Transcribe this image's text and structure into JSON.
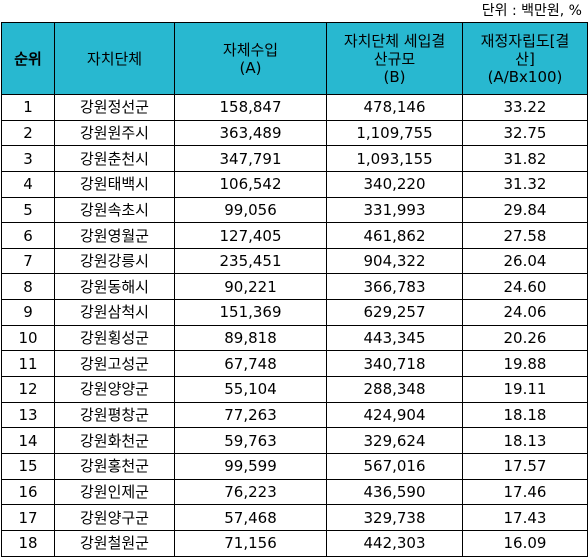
{
  "unit_note": "단위 : 백만원, %",
  "columns": {
    "rank": "순위",
    "name": "자치단체",
    "own_revenue": [
      "자체수입",
      "(A)"
    ],
    "budget": [
      "자치단체 세입결",
      "산규모",
      "(B)"
    ],
    "ratio": [
      "재정자립도[결",
      "산]",
      "(A/Bx100)"
    ]
  },
  "rows": [
    {
      "rank": "1",
      "name": "강원정선군",
      "own_revenue": "158,847",
      "budget": "478,146",
      "ratio": "33.22"
    },
    {
      "rank": "2",
      "name": "강원원주시",
      "own_revenue": "363,489",
      "budget": "1,109,755",
      "ratio": "32.75"
    },
    {
      "rank": "3",
      "name": "강원춘천시",
      "own_revenue": "347,791",
      "budget": "1,093,155",
      "ratio": "31.82"
    },
    {
      "rank": "4",
      "name": "강원태백시",
      "own_revenue": "106,542",
      "budget": "340,220",
      "ratio": "31.32"
    },
    {
      "rank": "5",
      "name": "강원속초시",
      "own_revenue": "99,056",
      "budget": "331,993",
      "ratio": "29.84"
    },
    {
      "rank": "6",
      "name": "강원영월군",
      "own_revenue": "127,405",
      "budget": "461,862",
      "ratio": "27.58"
    },
    {
      "rank": "7",
      "name": "강원강릉시",
      "own_revenue": "235,451",
      "budget": "904,322",
      "ratio": "26.04"
    },
    {
      "rank": "8",
      "name": "강원동해시",
      "own_revenue": "90,221",
      "budget": "366,783",
      "ratio": "24.60"
    },
    {
      "rank": "9",
      "name": "강원삼척시",
      "own_revenue": "151,369",
      "budget": "629,257",
      "ratio": "24.06"
    },
    {
      "rank": "10",
      "name": "강원횡성군",
      "own_revenue": "89,818",
      "budget": "443,345",
      "ratio": "20.26"
    },
    {
      "rank": "11",
      "name": "강원고성군",
      "own_revenue": "67,748",
      "budget": "340,718",
      "ratio": "19.88"
    },
    {
      "rank": "12",
      "name": "강원양양군",
      "own_revenue": "55,104",
      "budget": "288,348",
      "ratio": "19.11"
    },
    {
      "rank": "13",
      "name": "강원평창군",
      "own_revenue": "77,263",
      "budget": "424,904",
      "ratio": "18.18"
    },
    {
      "rank": "14",
      "name": "강원화천군",
      "own_revenue": "59,763",
      "budget": "329,624",
      "ratio": "18.13"
    },
    {
      "rank": "15",
      "name": "강원홍천군",
      "own_revenue": "99,599",
      "budget": "567,016",
      "ratio": "17.57"
    },
    {
      "rank": "16",
      "name": "강원인제군",
      "own_revenue": "76,223",
      "budget": "436,590",
      "ratio": "17.46"
    },
    {
      "rank": "17",
      "name": "강원양구군",
      "own_revenue": "57,468",
      "budget": "329,738",
      "ratio": "17.43"
    },
    {
      "rank": "18",
      "name": "강원철원군",
      "own_revenue": "71,156",
      "budget": "442,303",
      "ratio": "16.09"
    }
  ],
  "colors": {
    "header_bg": "#28b8d0",
    "border": "#000000"
  }
}
